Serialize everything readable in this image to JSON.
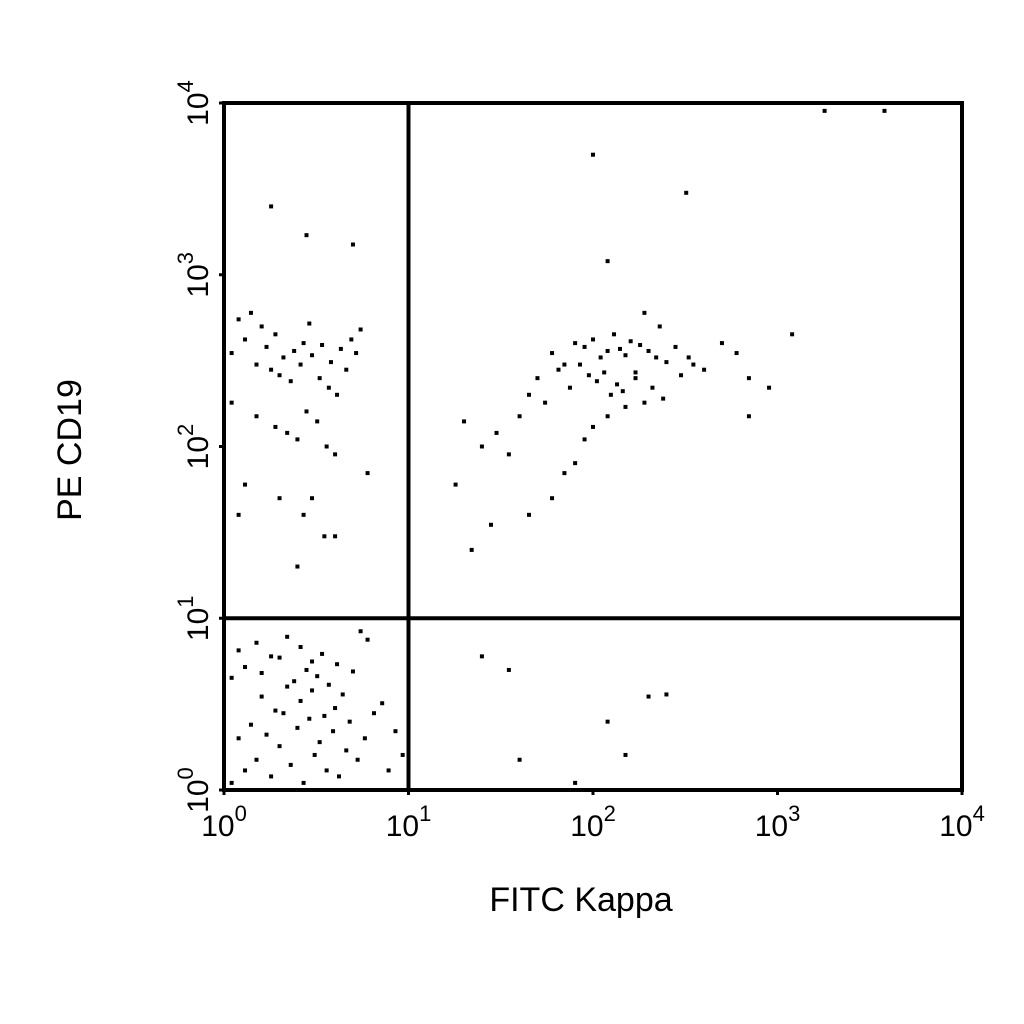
{
  "chart_data": {
    "type": "scatter",
    "x_label": "FITC Kappa",
    "y_label": "PE CD19",
    "log_x": true,
    "log_y": true,
    "color": "#000000",
    "xlim": [
      1,
      10000
    ],
    "ylim": [
      1,
      10000
    ],
    "xticks": [
      {
        "value": 1,
        "label": "10",
        "sup": "0"
      },
      {
        "value": 10,
        "label": "10",
        "sup": "1"
      },
      {
        "value": 100,
        "label": "10",
        "sup": "2"
      },
      {
        "value": 1000,
        "label": "10",
        "sup": "3"
      },
      {
        "value": 10000,
        "label": "10",
        "sup": "4"
      }
    ],
    "yticks": [
      {
        "value": 1,
        "label": "10",
        "sup": "0"
      },
      {
        "value": 10,
        "label": "10",
        "sup": "1"
      },
      {
        "value": 100,
        "label": "10",
        "sup": "2"
      },
      {
        "value": 1000,
        "label": "10",
        "sup": "3"
      },
      {
        "value": 10000,
        "label": "10",
        "sup": "4"
      }
    ],
    "quadrant_lines": {
      "x": 10,
      "y": 10
    },
    "x": [
      1.1,
      1.3,
      1.5,
      1.8,
      2.0,
      2.3,
      2.7,
      3.1,
      3.6,
      4.2,
      1.2,
      1.4,
      1.7,
      2.1,
      2.5,
      2.9,
      3.3,
      3.9,
      4.6,
      5.3,
      1.0,
      1.6,
      1.9,
      2.2,
      2.6,
      3.0,
      3.5,
      4.0,
      4.8,
      5.8,
      1.1,
      1.3,
      1.6,
      2.0,
      2.4,
      2.8,
      3.2,
      3.7,
      4.4,
      6.5,
      1.2,
      1.5,
      1.8,
      2.2,
      2.6,
      3.0,
      3.4,
      4.1,
      5.0,
      7.2,
      8.5,
      9.3,
      6.0,
      5.5,
      7.8,
      1.1,
      1.3,
      1.5,
      1.7,
      1.9,
      2.1,
      2.4,
      2.7,
      3.0,
      3.4,
      3.8,
      4.3,
      4.9,
      5.5,
      1.2,
      1.4,
      1.6,
      1.8,
      2.0,
      2.3,
      2.6,
      2.9,
      3.3,
      3.7,
      4.1,
      4.6,
      5.2,
      1.1,
      1.5,
      1.9,
      2.2,
      2.5,
      2.8,
      3.2,
      3.6,
      4.0,
      1.3,
      2.0,
      2.7,
      3.5,
      60,
      70,
      80,
      90,
      100,
      110,
      120,
      130,
      140,
      150,
      160,
      180,
      200,
      220,
      250,
      280,
      50,
      65,
      75,
      85,
      95,
      105,
      115,
      125,
      135,
      145,
      170,
      190,
      210,
      240,
      300,
      350,
      400,
      40,
      45,
      55,
      30,
      35,
      25,
      20,
      18,
      150,
      100,
      80,
      60,
      500,
      600,
      700,
      900,
      1200,
      230,
      190,
      170,
      120,
      90,
      70,
      45,
      28,
      22,
      330,
      1.8,
      2.8,
      5,
      1800,
      3800,
      100,
      320,
      120,
      25,
      35,
      120,
      200,
      40,
      80,
      150,
      4,
      3,
      6,
      1.2,
      2.5,
      250,
      700
    ],
    "values": [
      1.1,
      1.3,
      1.5,
      1.2,
      1.8,
      1.4,
      1.1,
      1.6,
      1.3,
      1.2,
      2.0,
      2.4,
      2.1,
      2.8,
      2.3,
      2.6,
      1.9,
      2.2,
      1.7,
      1.5,
      3.1,
      3.5,
      2.9,
      4.0,
      3.3,
      3.8,
      2.7,
      3.0,
      2.5,
      2.0,
      4.5,
      5.2,
      4.8,
      5.9,
      4.3,
      5.0,
      4.6,
      4.1,
      3.6,
      2.8,
      6.5,
      7.2,
      6.0,
      7.8,
      6.8,
      5.6,
      6.2,
      5.4,
      4.9,
      3.2,
      2.2,
      1.6,
      7.5,
      8.4,
      1.3,
      350,
      420,
      300,
      380,
      450,
      330,
      360,
      400,
      340,
      390,
      310,
      370,
      420,
      480,
      550,
      600,
      500,
      280,
      260,
      240,
      300,
      520,
      250,
      220,
      200,
      280,
      350,
      180,
      150,
      130,
      120,
      110,
      160,
      140,
      100,
      90,
      60,
      50,
      40,
      30,
      350,
      300,
      400,
      380,
      420,
      330,
      360,
      450,
      370,
      340,
      410,
      390,
      360,
      330,
      310,
      380,
      250,
      280,
      220,
      300,
      260,
      240,
      270,
      200,
      230,
      210,
      250,
      180,
      220,
      190,
      260,
      300,
      280,
      150,
      200,
      180,
      120,
      90,
      100,
      140,
      60,
      170,
      130,
      80,
      50,
      400,
      350,
      250,
      220,
      450,
      500,
      600,
      270,
      150,
      110,
      70,
      40,
      35,
      25,
      330,
      2500,
      1700,
      1500,
      9000,
      9000,
      5000,
      3000,
      1200,
      6,
      5,
      2.5,
      3.5,
      1.5,
      1.1,
      1.6,
      30,
      50,
      70,
      40,
      20,
      3.6,
      150
    ]
  }
}
